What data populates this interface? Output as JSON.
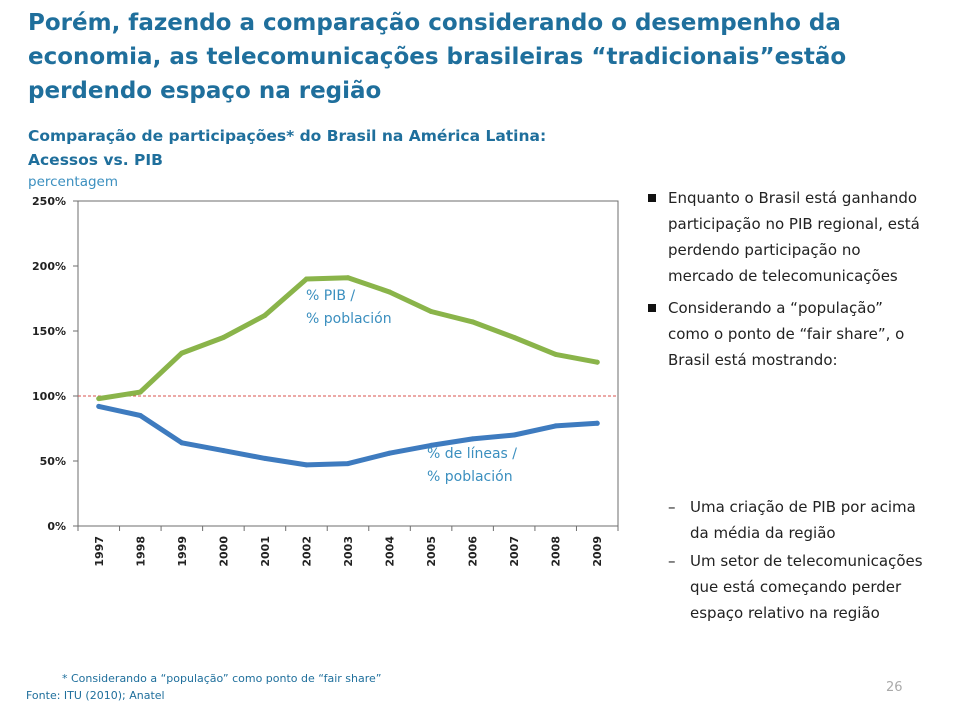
{
  "slide": {
    "title": "Porém, fazendo a comparação considerando o desempenho da economia, as telecomunicações brasileiras “tradicionais”estão perdendo espaço na região",
    "subtitle_line1": "Comparação de participações* do Brasil na América Latina:",
    "subtitle_line2": "Acessos vs. PIB",
    "unit_label": "percentagem",
    "bullets": [
      "Enquanto o Brasil está ganhando participação no PIB regional, está perdendo participação  no mercado de telecomunicações",
      "Considerando a “população” como o ponto de “fair share”, o Brasil está mostrando:"
    ],
    "sub_bullets": [
      "Uma criação de PIB por acima da média da região",
      "Um setor de telecomunicações que está começando perder espaço relativo na região"
    ],
    "footnote": "* Considerando a “população” como ponto de “fair share”",
    "source": "Fonte: ITU (2010); Anatel",
    "page_number": "26"
  },
  "chart_data": {
    "type": "line",
    "x": [
      "1997",
      "1998",
      "1999",
      "2000",
      "2001",
      "2002",
      "2003",
      "2004",
      "2005",
      "2006",
      "2007",
      "2008",
      "2009"
    ],
    "y_ticks": [
      "0%",
      "50%",
      "100%",
      "150%",
      "200%",
      "250%"
    ],
    "ylim": [
      0,
      250
    ],
    "reference_line": {
      "value": 100,
      "color": "#d9534f",
      "style": "dashed"
    },
    "series": [
      {
        "name": "% PIB / % población",
        "color": "#8ab44a",
        "values": [
          98,
          103,
          133,
          145,
          162,
          190,
          191,
          180,
          165,
          157,
          145,
          132,
          126
        ]
      },
      {
        "name": "% de líneas / % población",
        "color": "#3e7bbf",
        "values": [
          92,
          85,
          64,
          58,
          52,
          47,
          48,
          56,
          62,
          67,
          70,
          77,
          79
        ]
      }
    ],
    "labels": [
      {
        "line1": "% PIB /",
        "line2": "% población",
        "color": "#3b8fbf"
      },
      {
        "line1": "% de líneas /",
        "line2": "% población",
        "color": "#3b8fbf"
      }
    ],
    "grid": false
  }
}
